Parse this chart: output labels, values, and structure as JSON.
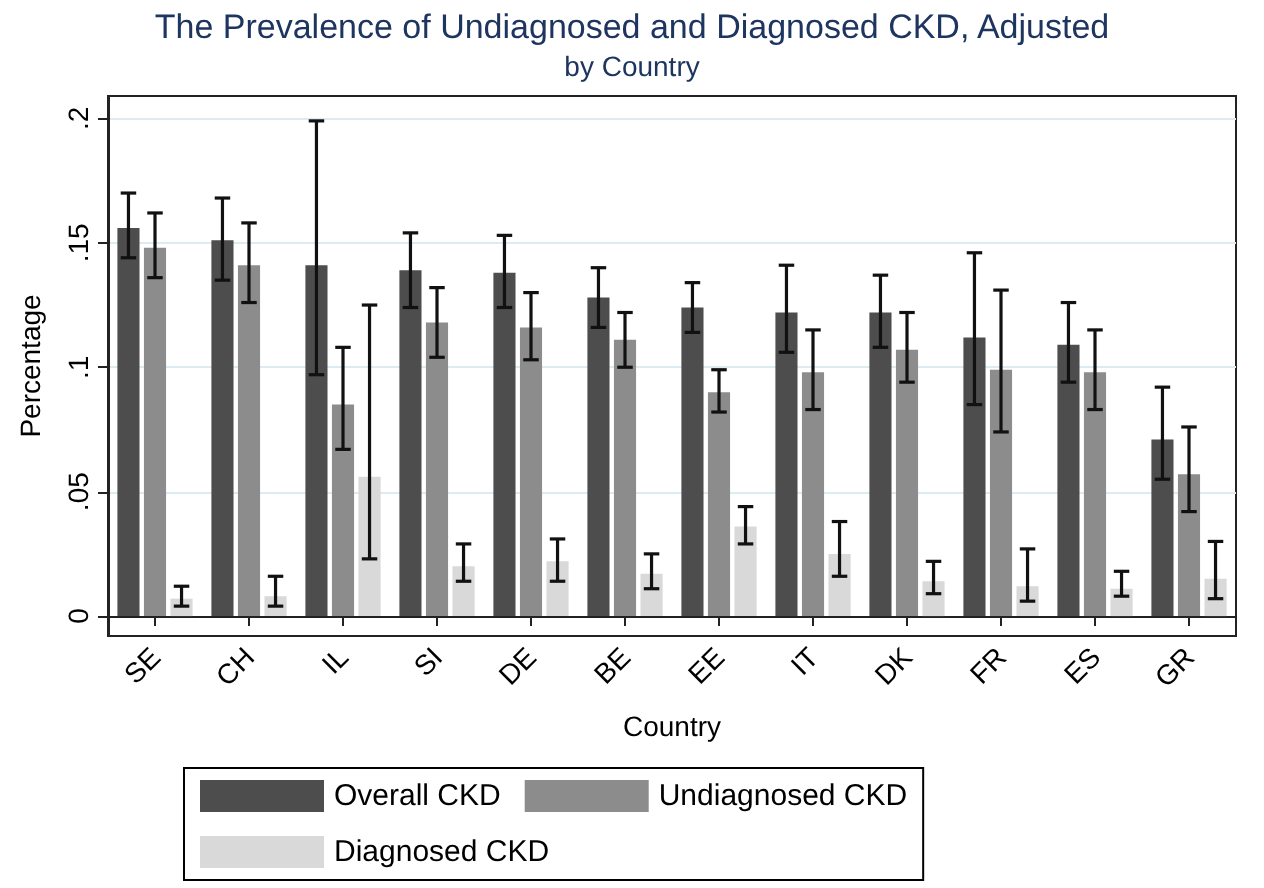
{
  "chart_data": {
    "type": "bar",
    "title": "The Prevalence of Undiagnosed and Diagnosed CKD, Adjusted",
    "subtitle": "by Country",
    "xlabel": "Country",
    "ylabel": "Percentage",
    "categories": [
      "SE",
      "CH",
      "IL",
      "SI",
      "DE",
      "BE",
      "EE",
      "IT",
      "DK",
      "FR",
      "ES",
      "GR"
    ],
    "series": [
      {
        "name": "Overall CKD",
        "color": "#4d4d4d",
        "values": [
          0.156,
          0.151,
          0.141,
          0.139,
          0.138,
          0.128,
          0.124,
          0.122,
          0.122,
          0.112,
          0.109,
          0.071
        ],
        "errors": [
          [
            0.144,
            0.17
          ],
          [
            0.135,
            0.168
          ],
          [
            0.097,
            0.199
          ],
          [
            0.124,
            0.154
          ],
          [
            0.124,
            0.153
          ],
          [
            0.116,
            0.14
          ],
          [
            0.114,
            0.134
          ],
          [
            0.106,
            0.141
          ],
          [
            0.108,
            0.137
          ],
          [
            0.085,
            0.146
          ],
          [
            0.094,
            0.126
          ],
          [
            0.055,
            0.092
          ]
        ]
      },
      {
        "name": "Undiagnosed CKD",
        "color": "#8c8c8c",
        "values": [
          0.148,
          0.141,
          0.085,
          0.118,
          0.116,
          0.111,
          0.09,
          0.098,
          0.107,
          0.099,
          0.098,
          0.057
        ],
        "errors": [
          [
            0.136,
            0.162
          ],
          [
            0.126,
            0.158
          ],
          [
            0.067,
            0.108
          ],
          [
            0.104,
            0.132
          ],
          [
            0.103,
            0.13
          ],
          [
            0.1,
            0.122
          ],
          [
            0.082,
            0.099
          ],
          [
            0.083,
            0.115
          ],
          [
            0.094,
            0.122
          ],
          [
            0.074,
            0.131
          ],
          [
            0.083,
            0.115
          ],
          [
            0.042,
            0.076
          ]
        ]
      },
      {
        "name": "Diagnosed CKD",
        "color": "#d9d9d9",
        "values": [
          0.007,
          0.008,
          0.056,
          0.02,
          0.022,
          0.017,
          0.036,
          0.025,
          0.014,
          0.012,
          0.011,
          0.015
        ],
        "errors": [
          [
            0.004,
            0.012
          ],
          [
            0.004,
            0.016
          ],
          [
            0.023,
            0.125
          ],
          [
            0.014,
            0.029
          ],
          [
            0.014,
            0.031
          ],
          [
            0.011,
            0.025
          ],
          [
            0.029,
            0.044
          ],
          [
            0.016,
            0.038
          ],
          [
            0.009,
            0.022
          ],
          [
            0.006,
            0.027
          ],
          [
            0.008,
            0.018
          ],
          [
            0.007,
            0.03
          ]
        ]
      }
    ],
    "ylim": [
      -0.008,
      0.209
    ],
    "yticks": [
      {
        "value": 0,
        "label": "0"
      },
      {
        "value": 0.05,
        "label": ".05"
      },
      {
        "value": 0.1,
        "label": ".1"
      },
      {
        "value": 0.15,
        "label": ".15"
      },
      {
        "value": 0.2,
        "label": ".2"
      }
    ],
    "grid": "y",
    "legend": "bottom"
  }
}
